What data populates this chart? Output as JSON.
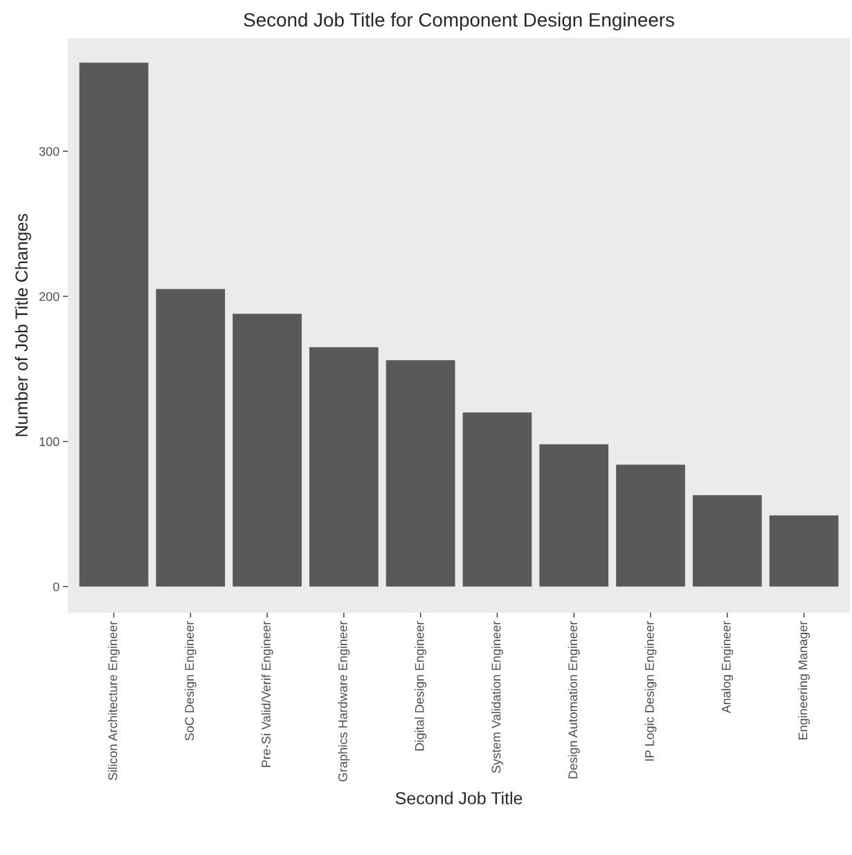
{
  "chart_data": {
    "type": "bar",
    "title": "Second Job Title for Component Design Engineers",
    "xlabel": "Second Job Title",
    "ylabel": "Number of Job Title Changes",
    "categories": [
      "Silicon Architecture Engineer",
      "SoC Design Engineer",
      "Pre-Si Valid/Verif Engineer",
      "Graphics Hardware Engineer",
      "Digital Design Engineer",
      "System Validation Engineer",
      "Design Automation Engineer",
      "IP Logic Design Engineer",
      "Analog Engineer",
      "Engineering Manager"
    ],
    "values": [
      361,
      205,
      188,
      165,
      156,
      120,
      98,
      84,
      63,
      49
    ],
    "color": "#595959",
    "ylim": [
      -18,
      378
    ],
    "yticks": [
      0,
      100,
      200,
      300
    ],
    "grid": false
  }
}
